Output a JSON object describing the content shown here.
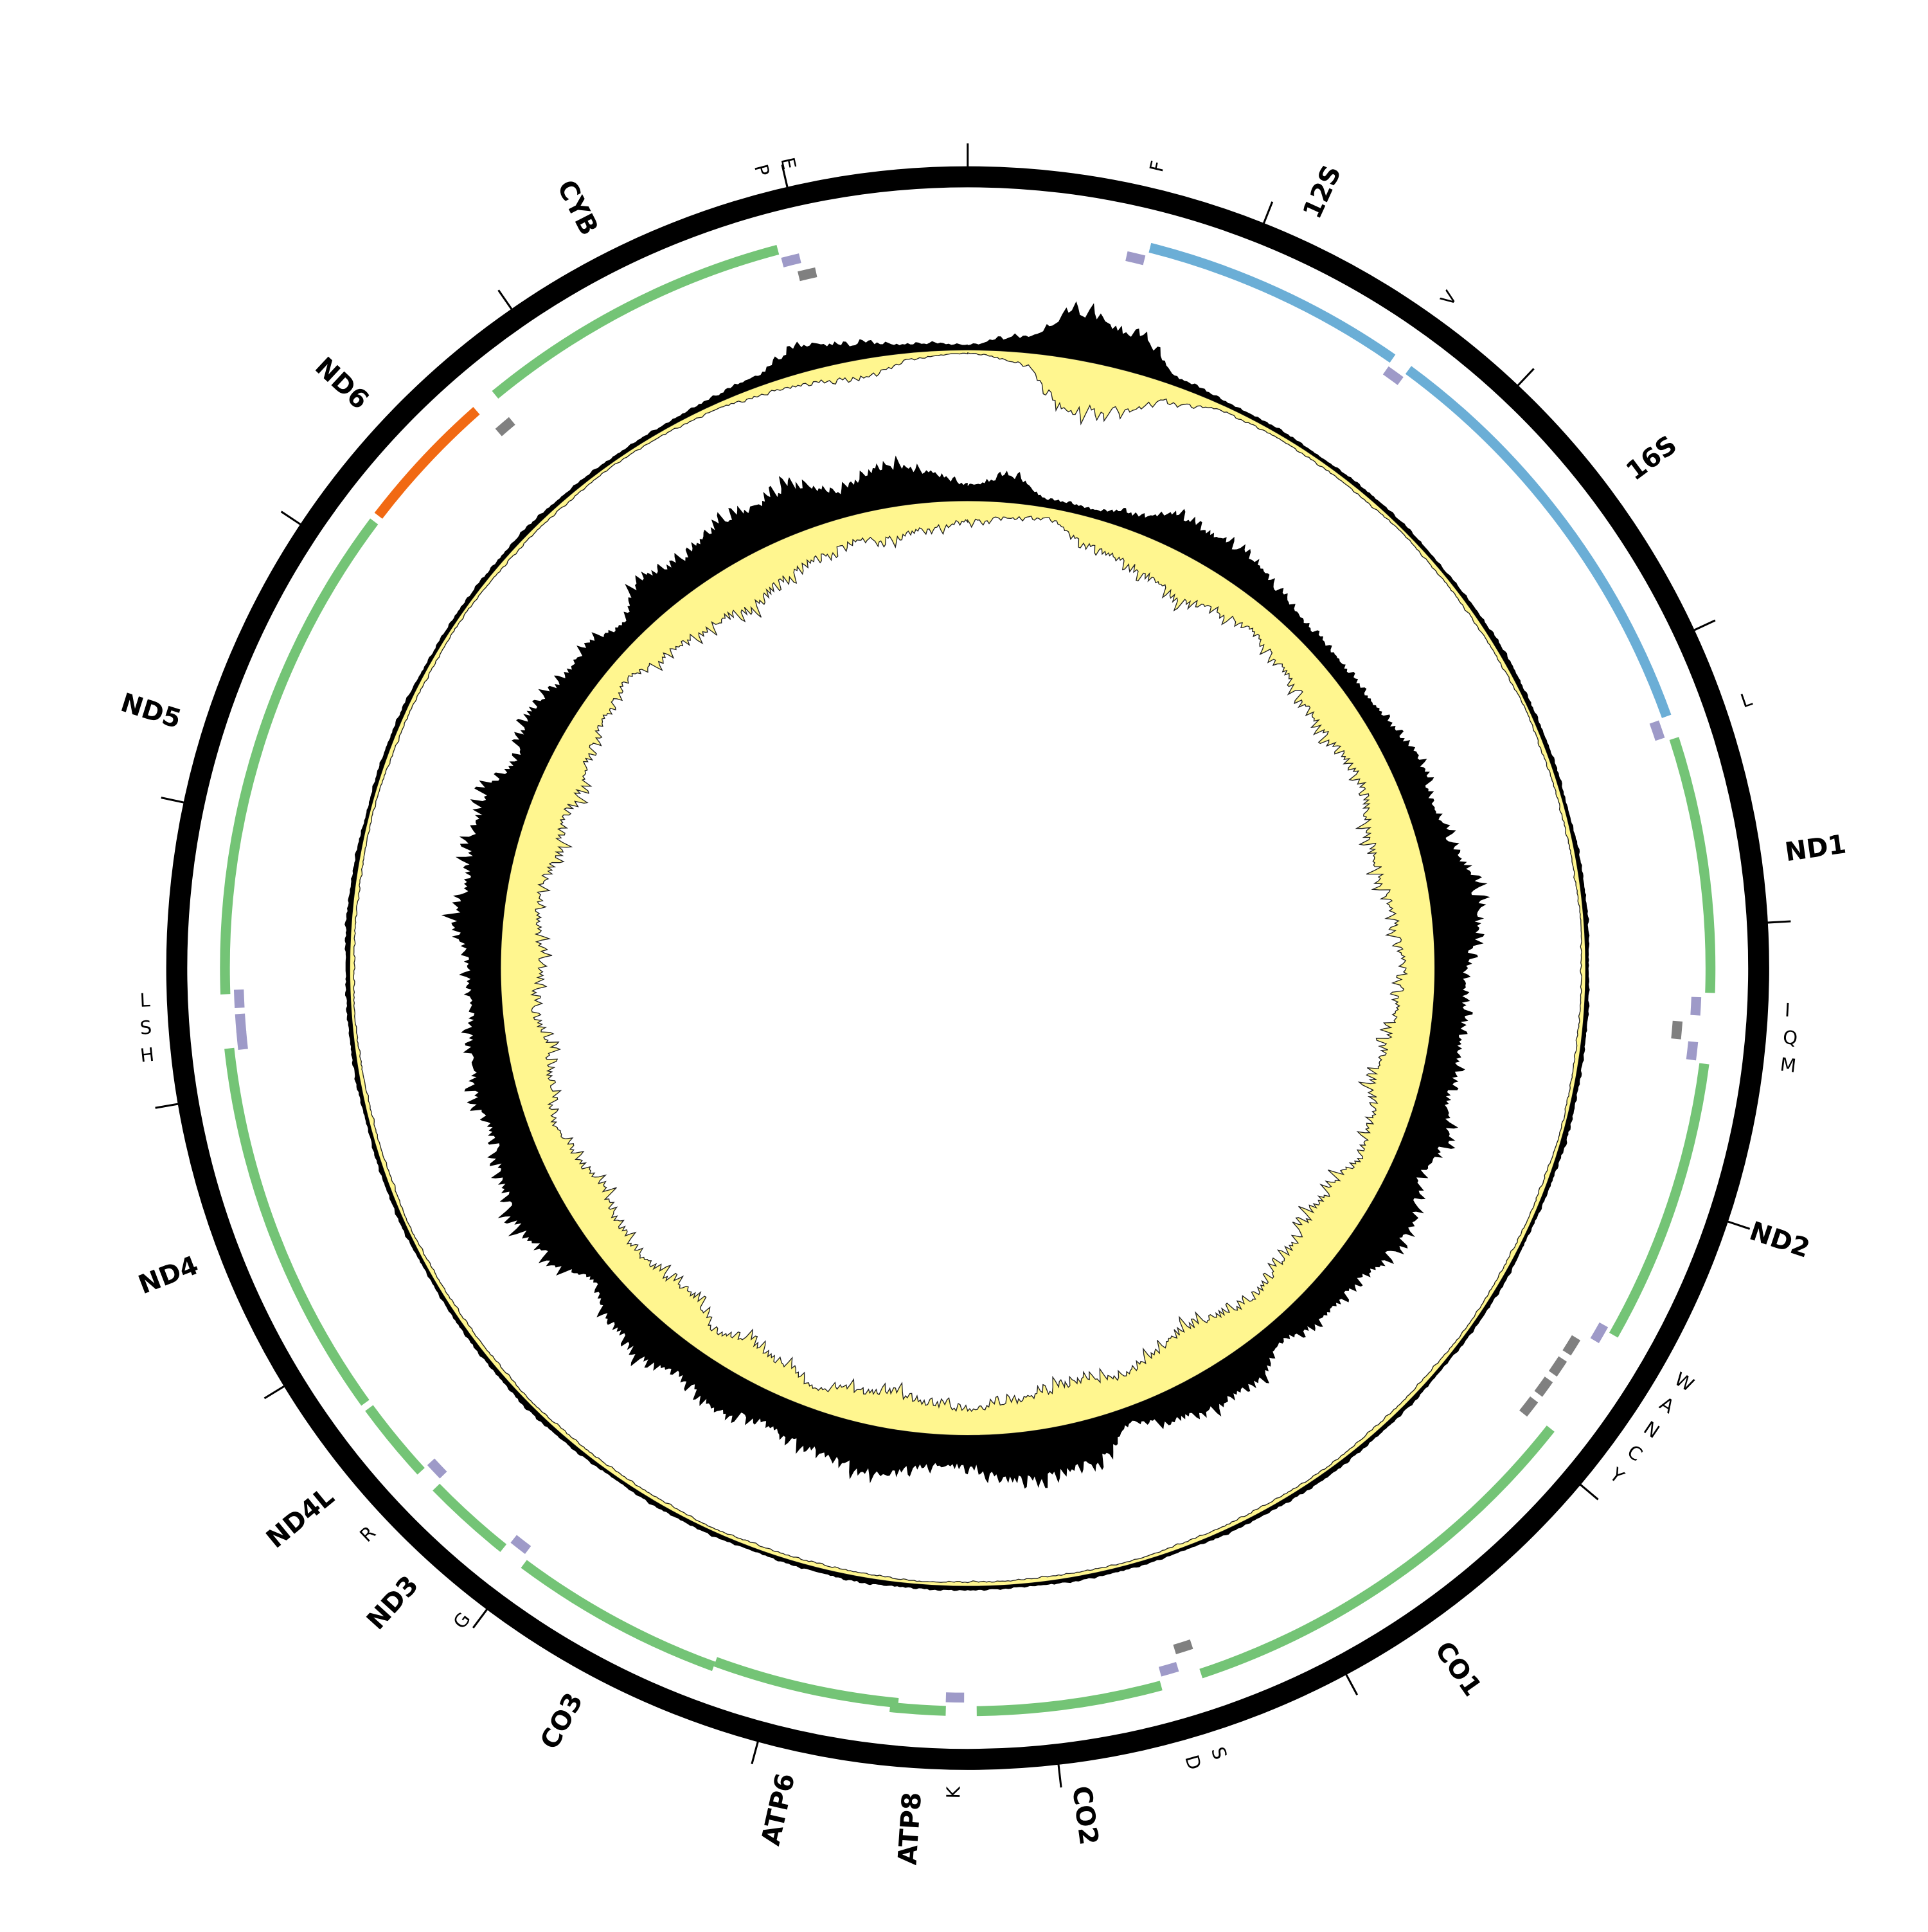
{
  "genome": {
    "length": 16600,
    "tick_interval": 1000,
    "features": [
      {
        "label": "12S",
        "type": "rRNA",
        "strand": "+",
        "start": 655,
        "end": 1609
      },
      {
        "label": "16S",
        "type": "rRNA",
        "strand": "+",
        "start": 1678,
        "end": 3237
      },
      {
        "label": "ND1",
        "type": "CDS",
        "strand": "+",
        "start": 3320,
        "end": 4238
      },
      {
        "label": "ND2",
        "type": "CDS",
        "strand": "+",
        "start": 4491,
        "end": 5515
      },
      {
        "label": "CO1",
        "type": "CDS",
        "strand": "+",
        "start": 5916,
        "end": 7456
      },
      {
        "label": "CO2",
        "type": "CDS",
        "strand": "+",
        "start": 7604,
        "end": 8268
      },
      {
        "label": "ATP8",
        "type": "CDS",
        "strand": "+",
        "start": 8378,
        "end": 8577
      },
      {
        "label": "ATP6",
        "type": "CDS",
        "strand": "+",
        "start": 8549,
        "end": 9222
      },
      {
        "label": "CO3",
        "type": "CDS",
        "strand": "+",
        "start": 9222,
        "end": 9992
      },
      {
        "label": "ND3",
        "type": "CDS",
        "strand": "+",
        "start": 10084,
        "end": 10407
      },
      {
        "label": "ND4L",
        "type": "CDS",
        "strand": "+",
        "start": 10485,
        "end": 10776
      },
      {
        "label": "ND4",
        "type": "CDS",
        "strand": "+",
        "start": 10799,
        "end": 12164
      },
      {
        "label": "ND5",
        "type": "CDS",
        "strand": "+",
        "start": 12357,
        "end": 14154
      },
      {
        "label": "ND6",
        "type": "CDS",
        "strand": "-",
        "start": 14179,
        "end": 14691
      },
      {
        "label": "CYB",
        "type": "CDS",
        "strand": "+",
        "start": 14778,
        "end": 15917
      },
      {
        "label": "F",
        "type": "tRNA",
        "strand": "+",
        "start": 580,
        "end": 646
      },
      {
        "label": "V",
        "type": "tRNA",
        "strand": "+",
        "start": 1613,
        "end": 1679
      },
      {
        "label": "L",
        "type": "tRNA",
        "strand": "+",
        "start": 3241,
        "end": 3307
      },
      {
        "label": "I",
        "type": "tRNA",
        "strand": "+",
        "start": 4255,
        "end": 4321
      },
      {
        "label": "Q",
        "type": "tRNA",
        "strand": "-",
        "start": 4347,
        "end": 4413
      },
      {
        "label": "M",
        "type": "tRNA",
        "strand": "+",
        "start": 4417,
        "end": 4483
      },
      {
        "label": "W",
        "type": "tRNA",
        "strand": "+",
        "start": 5500,
        "end": 5566
      },
      {
        "label": "A",
        "type": "tRNA",
        "strand": "-",
        "start": 5592,
        "end": 5658
      },
      {
        "label": "N",
        "type": "tRNA",
        "strand": "-",
        "start": 5685,
        "end": 5751
      },
      {
        "label": "C",
        "type": "tRNA",
        "strand": "-",
        "start": 5777,
        "end": 5843
      },
      {
        "label": "Y",
        "type": "tRNA",
        "strand": "-",
        "start": 5869,
        "end": 5935
      },
      {
        "label": "S",
        "type": "tRNA",
        "strand": "-",
        "start": 7455,
        "end": 7521
      },
      {
        "label": "D",
        "type": "tRNA",
        "strand": "+",
        "start": 7529,
        "end": 7595
      },
      {
        "label": "K",
        "type": "tRNA",
        "strand": "+",
        "start": 8313,
        "end": 8379
      },
      {
        "label": "G",
        "type": "tRNA",
        "strand": "+",
        "start": 10010,
        "end": 10076
      },
      {
        "label": "R",
        "type": "tRNA",
        "strand": "+",
        "start": 10420,
        "end": 10486
      },
      {
        "label": "H",
        "type": "tRNA",
        "strand": "+",
        "start": 12155,
        "end": 12221
      },
      {
        "label": "S",
        "type": "tRNA",
        "strand": "+",
        "start": 12218,
        "end": 12284
      },
      {
        "label": "L",
        "type": "tRNA",
        "strand": "+",
        "start": 12306,
        "end": 12372
      },
      {
        "label": "",
        "type": "tRNA",
        "strand": "-",
        "start": 14699,
        "end": 14765
      },
      {
        "label": "P",
        "type": "tRNA",
        "strand": "+",
        "start": 15921,
        "end": 15987
      },
      {
        "label": "E",
        "type": "tRNA",
        "strand": "-",
        "start": 15967,
        "end": 16033
      }
    ]
  },
  "colors": {
    "backbone": "#000000",
    "CDS_plus": "#74c476",
    "CDS_minus": "#f16913",
    "rRNA": "#6baed6",
    "tRNA_plus": "#9e9ac8",
    "tRNA_minus": "#808080",
    "plot_positive": "#000000",
    "plot_negative": "#fff68f"
  },
  "chart_data": [
    {
      "type": "area",
      "name": "",
      "ring": "middle",
      "sample_step_bp": 230,
      "positive": [
        5,
        15,
        45,
        35,
        8,
        4,
        4,
        3,
        4,
        4,
        3,
        4,
        5,
        4,
        4,
        3,
        4,
        4,
        3,
        4,
        4,
        5,
        4,
        3,
        4,
        4,
        3,
        4,
        4,
        5,
        4,
        4,
        3,
        4,
        4,
        3,
        4,
        4,
        5,
        4,
        3,
        4,
        4,
        3,
        4,
        5,
        4,
        4,
        3,
        4,
        4,
        3,
        4,
        4,
        4,
        5,
        4,
        3,
        4,
        4,
        3,
        4,
        4,
        5,
        4,
        4,
        4,
        6,
        10,
        25,
        15,
        8
      ],
      "negative": [
        3,
        10,
        50,
        40,
        15,
        5,
        4,
        4,
        4,
        3,
        4,
        4,
        4,
        3,
        4,
        4,
        4,
        3,
        4,
        4,
        4,
        3,
        4,
        4,
        4,
        3,
        4,
        4,
        4,
        3,
        4,
        4,
        4,
        3,
        4,
        4,
        4,
        3,
        4,
        4,
        4,
        3,
        4,
        4,
        4,
        3,
        4,
        4,
        4,
        3,
        4,
        4,
        4,
        3,
        4,
        4,
        4,
        3,
        4,
        4,
        4,
        3,
        4,
        4,
        4,
        3,
        4,
        5,
        8,
        12,
        18,
        6
      ]
    },
    {
      "type": "area",
      "name": "",
      "ring": "inner",
      "sample_step_bp": 230,
      "positive": [
        15,
        25,
        8,
        8,
        15,
        30,
        30,
        30,
        20,
        15,
        15,
        15,
        20,
        30,
        25,
        30,
        45,
        45,
        30,
        30,
        30,
        30,
        40,
        30,
        45,
        40,
        30,
        30,
        20,
        35,
        35,
        30,
        15,
        40,
        45,
        45,
        30,
        30,
        45,
        40,
        35,
        30,
        40,
        30,
        40,
        35,
        20,
        40,
        50,
        45,
        35,
        40,
        35,
        30,
        30,
        45,
        40,
        45,
        45,
        30,
        40,
        30,
        30,
        20,
        40,
        30,
        40,
        40,
        45,
        25,
        40,
        30
      ],
      "negative": [
        20,
        15,
        10,
        25,
        30,
        35,
        40,
        30,
        25,
        30,
        35,
        40,
        35,
        30,
        40,
        45,
        40,
        35,
        30,
        35,
        40,
        45,
        35,
        30,
        40,
        45,
        40,
        35,
        30,
        40,
        45,
        35,
        30,
        40,
        35,
        30,
        25,
        30,
        35,
        30,
        20,
        30,
        35,
        25,
        40,
        35,
        30,
        35,
        40,
        30,
        25,
        35,
        40,
        30,
        40,
        35,
        30,
        40,
        35,
        40,
        30,
        25,
        20,
        30,
        35,
        40,
        45,
        35,
        30,
        25,
        30,
        25
      ]
    }
  ]
}
